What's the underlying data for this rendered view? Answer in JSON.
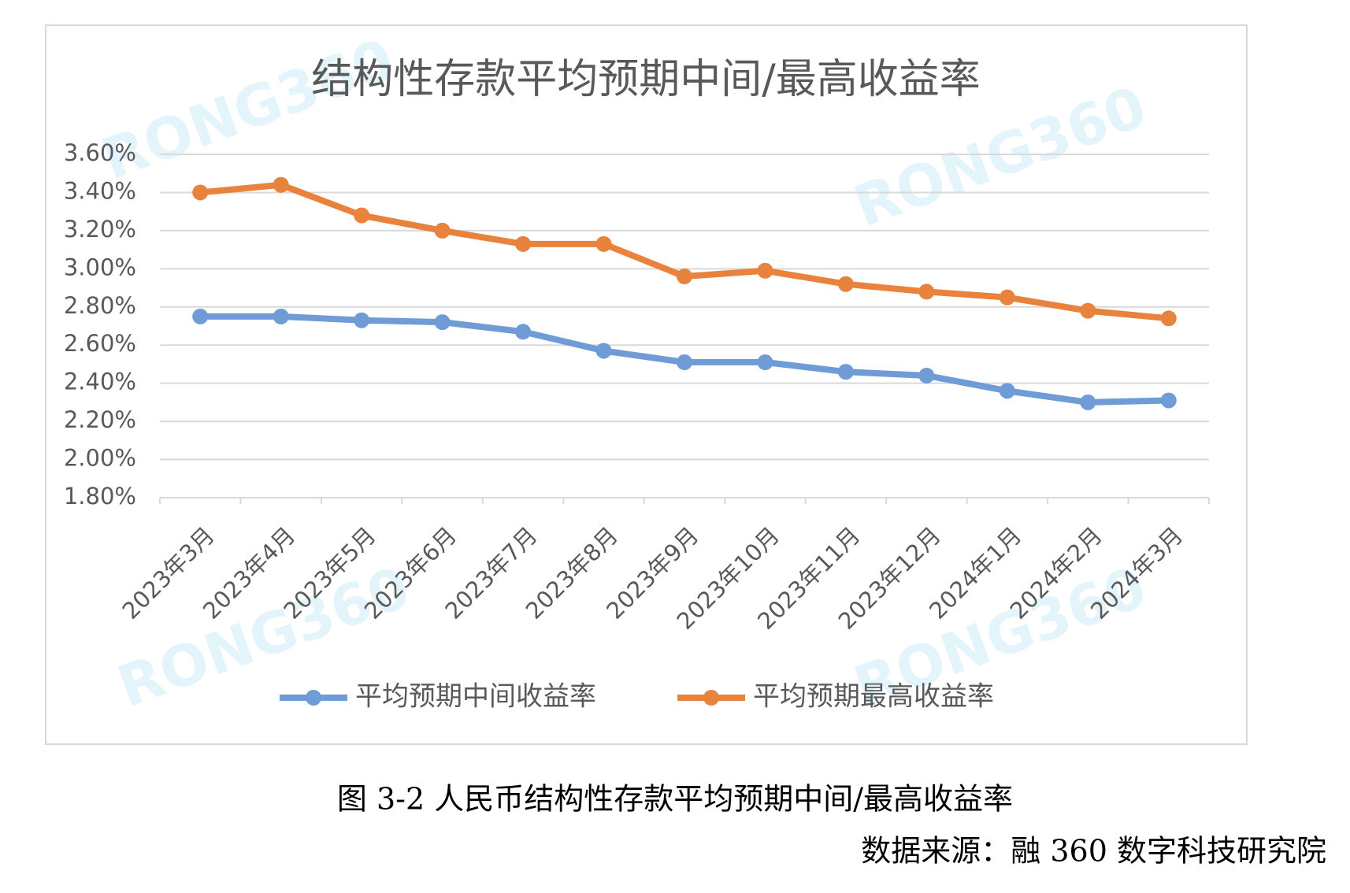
{
  "chart_data": {
    "type": "line",
    "title": "结构性存款平均预期中间/最高收益率",
    "categories": [
      "2023年3月",
      "2023年4月",
      "2023年5月",
      "2023年6月",
      "2023年7月",
      "2023年8月",
      "2023年9月",
      "2023年10月",
      "2023年11月",
      "2023年12月",
      "2024年1月",
      "2024年2月",
      "2024年3月"
    ],
    "series": [
      {
        "name": "平均预期中间收益率",
        "color": "#6f9bd6",
        "values": [
          2.75,
          2.75,
          2.73,
          2.72,
          2.67,
          2.57,
          2.51,
          2.51,
          2.46,
          2.44,
          2.36,
          2.3,
          2.31
        ]
      },
      {
        "name": "平均预期最高收益率",
        "color": "#e8823d",
        "values": [
          3.4,
          3.44,
          3.28,
          3.2,
          3.13,
          3.13,
          2.96,
          2.99,
          2.92,
          2.88,
          2.85,
          2.78,
          2.74
        ]
      }
    ],
    "ylim": [
      1.8,
      3.6
    ],
    "yticks": [
      {
        "value": 1.8,
        "label": "1.80%"
      },
      {
        "value": 2.0,
        "label": "2.00%"
      },
      {
        "value": 2.2,
        "label": "2.20%"
      },
      {
        "value": 2.4,
        "label": "2.40%"
      },
      {
        "value": 2.6,
        "label": "2.60%"
      },
      {
        "value": 2.8,
        "label": "2.80%"
      },
      {
        "value": 3.0,
        "label": "3.00%"
      },
      {
        "value": 3.2,
        "label": "3.20%"
      },
      {
        "value": 3.4,
        "label": "3.40%"
      },
      {
        "value": 3.6,
        "label": "3.60%"
      }
    ],
    "grid": true,
    "legend": "bottom",
    "watermark": "RONG360"
  },
  "caption": "图 3-2 人民币结构性存款平均预期中间/最高收益率",
  "source": "数据来源：融 360 数字科技研究院"
}
